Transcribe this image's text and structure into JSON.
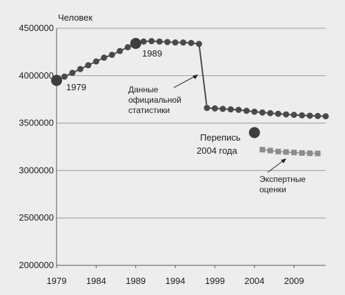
{
  "chart_data": {
    "type": "line",
    "ylabel": "Человек",
    "ylim": [
      2000000,
      4500000
    ],
    "xlim": [
      1979,
      2013
    ],
    "y_ticks": [
      "4500000",
      "4000000",
      "3500000",
      "3000000",
      "2500000",
      "2000000"
    ],
    "x_ticks": [
      "1979",
      "1984",
      "1989",
      "1994",
      "1999",
      "2004",
      "2009"
    ],
    "grid": true,
    "colors": {
      "official": "#4a4a4a",
      "expert": "#8c8c8c",
      "census": "#3e3e3e",
      "grid": "#9a9a9a"
    },
    "series": [
      {
        "name": "Данные официальной статистики",
        "marker": "circle",
        "x": [
          1979,
          1980,
          1981,
          1982,
          1983,
          1984,
          1985,
          1986,
          1987,
          1988,
          1989,
          1990,
          1991,
          1992,
          1993,
          1994,
          1995,
          1996,
          1997,
          1998,
          1999,
          2000,
          2001,
          2002,
          2003,
          2004,
          2005,
          2006,
          2007,
          2008,
          2009,
          2010,
          2011,
          2012,
          2013
        ],
        "y": [
          3950000,
          3990000,
          4030000,
          4070000,
          4110000,
          4150000,
          4190000,
          4220000,
          4260000,
          4300000,
          4340000,
          4360000,
          4365000,
          4360000,
          4355000,
          4350000,
          4350000,
          4345000,
          4335000,
          3660000,
          3655000,
          3650000,
          3645000,
          3640000,
          3630000,
          3620000,
          3612000,
          3605000,
          3598000,
          3592000,
          3587000,
          3582000,
          3578000,
          3575000,
          3572000
        ]
      },
      {
        "name": "Экспертные оценки",
        "marker": "square",
        "x": [
          2005,
          2006,
          2007,
          2008,
          2009,
          2010,
          2011,
          2012
        ],
        "y": [
          3220000,
          3210000,
          3200000,
          3195000,
          3190000,
          3185000,
          3182000,
          3180000
        ]
      }
    ],
    "highlight_points": [
      {
        "label": "1979",
        "x": 1979,
        "y": 3950000
      },
      {
        "label": "1989",
        "x": 1989,
        "y": 4340000
      },
      {
        "label": "Перепись 2004 года",
        "x": 2004,
        "y": 3400000
      }
    ],
    "annotations": {
      "year_1979": "1979",
      "year_1989": "1989",
      "official_line1": "Данные",
      "official_line2": "официальной",
      "official_line3": "статистики",
      "census_line1": "Перепись",
      "census_line2": "2004 года",
      "expert_line1": "Экспертные",
      "expert_line2": "оценки"
    }
  }
}
